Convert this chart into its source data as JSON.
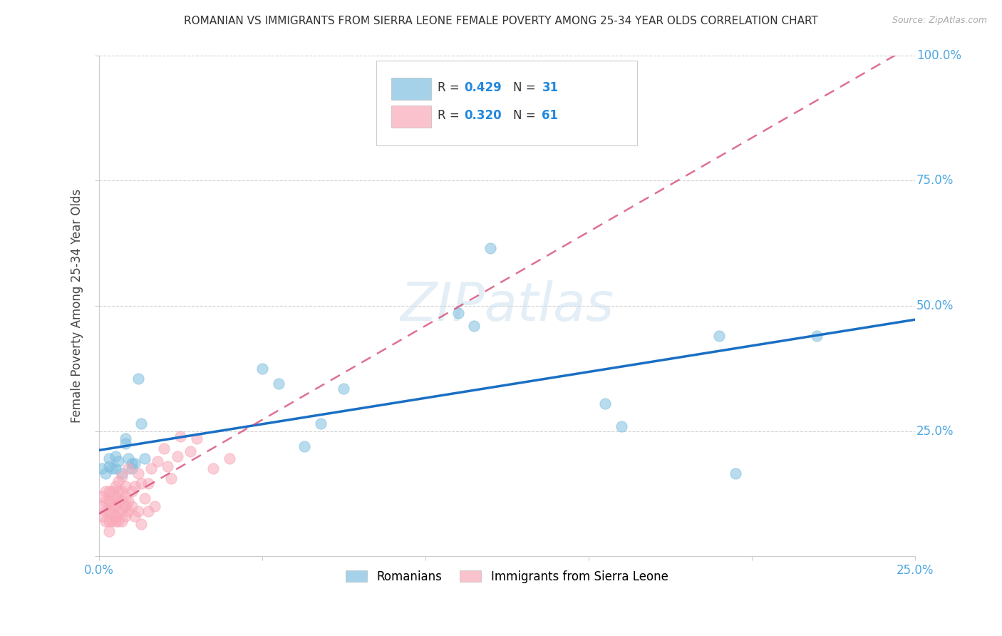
{
  "title": "ROMANIAN VS IMMIGRANTS FROM SIERRA LEONE FEMALE POVERTY AMONG 25-34 YEAR OLDS CORRELATION CHART",
  "source": "Source: ZipAtlas.com",
  "ylabel": "Female Poverty Among 25-34 Year Olds",
  "xlim": [
    0,
    0.25
  ],
  "ylim": [
    0,
    1.0
  ],
  "background_color": "#ffffff",
  "watermark": "ZIPatlas",
  "romanian_color": "#7fbfdf",
  "sierra_color": "#f8a8b8",
  "romanians_label": "Romanians",
  "sierra_label": "Immigrants from Sierra Leone",
  "rom_line_color": "#1a6fc4",
  "sl_line_color": "#d44070",
  "romanians_x": [
    0.001,
    0.002,
    0.003,
    0.003,
    0.004,
    0.005,
    0.005,
    0.006,
    0.007,
    0.008,
    0.008,
    0.009,
    0.01,
    0.011,
    0.012,
    0.013,
    0.014,
    0.05,
    0.055,
    0.063,
    0.068,
    0.075,
    0.11,
    0.115,
    0.12,
    0.155,
    0.16,
    0.19,
    0.195,
    0.22,
    0.01
  ],
  "romanians_y": [
    0.175,
    0.165,
    0.18,
    0.195,
    0.175,
    0.175,
    0.2,
    0.19,
    0.165,
    0.235,
    0.225,
    0.195,
    0.175,
    0.185,
    0.355,
    0.265,
    0.195,
    0.375,
    0.345,
    0.22,
    0.265,
    0.335,
    0.485,
    0.46,
    0.615,
    0.305,
    0.26,
    0.44,
    0.165,
    0.44,
    0.185
  ],
  "sierra_x": [
    0.001,
    0.001,
    0.001,
    0.002,
    0.002,
    0.002,
    0.002,
    0.003,
    0.003,
    0.003,
    0.003,
    0.003,
    0.004,
    0.004,
    0.004,
    0.004,
    0.005,
    0.005,
    0.005,
    0.005,
    0.005,
    0.006,
    0.006,
    0.006,
    0.006,
    0.006,
    0.007,
    0.007,
    0.007,
    0.007,
    0.007,
    0.008,
    0.008,
    0.008,
    0.008,
    0.009,
    0.009,
    0.009,
    0.01,
    0.01,
    0.011,
    0.011,
    0.012,
    0.012,
    0.013,
    0.013,
    0.014,
    0.015,
    0.015,
    0.016,
    0.017,
    0.018,
    0.02,
    0.021,
    0.022,
    0.024,
    0.025,
    0.028,
    0.03,
    0.035,
    0.04
  ],
  "sierra_y": [
    0.08,
    0.1,
    0.12,
    0.07,
    0.09,
    0.11,
    0.13,
    0.07,
    0.09,
    0.11,
    0.13,
    0.05,
    0.07,
    0.09,
    0.11,
    0.13,
    0.07,
    0.08,
    0.1,
    0.12,
    0.14,
    0.07,
    0.09,
    0.11,
    0.13,
    0.15,
    0.07,
    0.09,
    0.11,
    0.13,
    0.16,
    0.08,
    0.1,
    0.12,
    0.14,
    0.09,
    0.11,
    0.175,
    0.1,
    0.13,
    0.08,
    0.14,
    0.09,
    0.165,
    0.065,
    0.145,
    0.115,
    0.09,
    0.145,
    0.175,
    0.1,
    0.19,
    0.215,
    0.18,
    0.155,
    0.2,
    0.24,
    0.21,
    0.235,
    0.175,
    0.195
  ]
}
